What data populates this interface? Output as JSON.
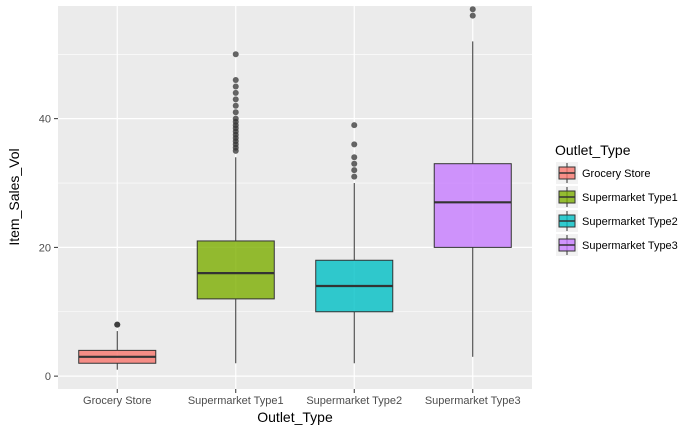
{
  "chart_data": {
    "type": "boxplot",
    "xlabel": "Outlet_Type",
    "ylabel": "Item_Sales_Vol",
    "ylim": [
      -2,
      57.5
    ],
    "yticks": [
      0,
      20,
      40
    ],
    "grid": true,
    "legend": {
      "title": "Outlet_Type",
      "position": "right"
    },
    "categories": [
      "Grocery Store",
      "Supermarket Type1",
      "Supermarket Type2",
      "Supermarket Type3"
    ],
    "series": [
      {
        "name": "Grocery Store",
        "color": "#F8766D",
        "whisker_low": 1,
        "q1": 2,
        "median": 3,
        "q3": 4,
        "whisker_high": 7,
        "outliers": [
          8,
          8
        ]
      },
      {
        "name": "Supermarket Type1",
        "color": "#7CAE00",
        "whisker_low": 2,
        "q1": 12,
        "median": 16,
        "q3": 21,
        "whisker_high": 34,
        "outliers": [
          35,
          35.5,
          36,
          36.5,
          37,
          37.5,
          38,
          38.5,
          39,
          39.5,
          40,
          41,
          42,
          43,
          44,
          45,
          46,
          50
        ]
      },
      {
        "name": "Supermarket Type2",
        "color": "#00BFC4",
        "whisker_low": 2,
        "q1": 10,
        "median": 14,
        "q3": 18,
        "whisker_high": 30,
        "outliers": [
          31,
          32,
          33,
          34,
          36,
          39
        ]
      },
      {
        "name": "Supermarket Type3",
        "color": "#C77CFF",
        "whisker_low": 3,
        "q1": 20,
        "median": 27,
        "q3": 33,
        "whisker_high": 52,
        "outliers": [
          56,
          57
        ]
      }
    ]
  }
}
